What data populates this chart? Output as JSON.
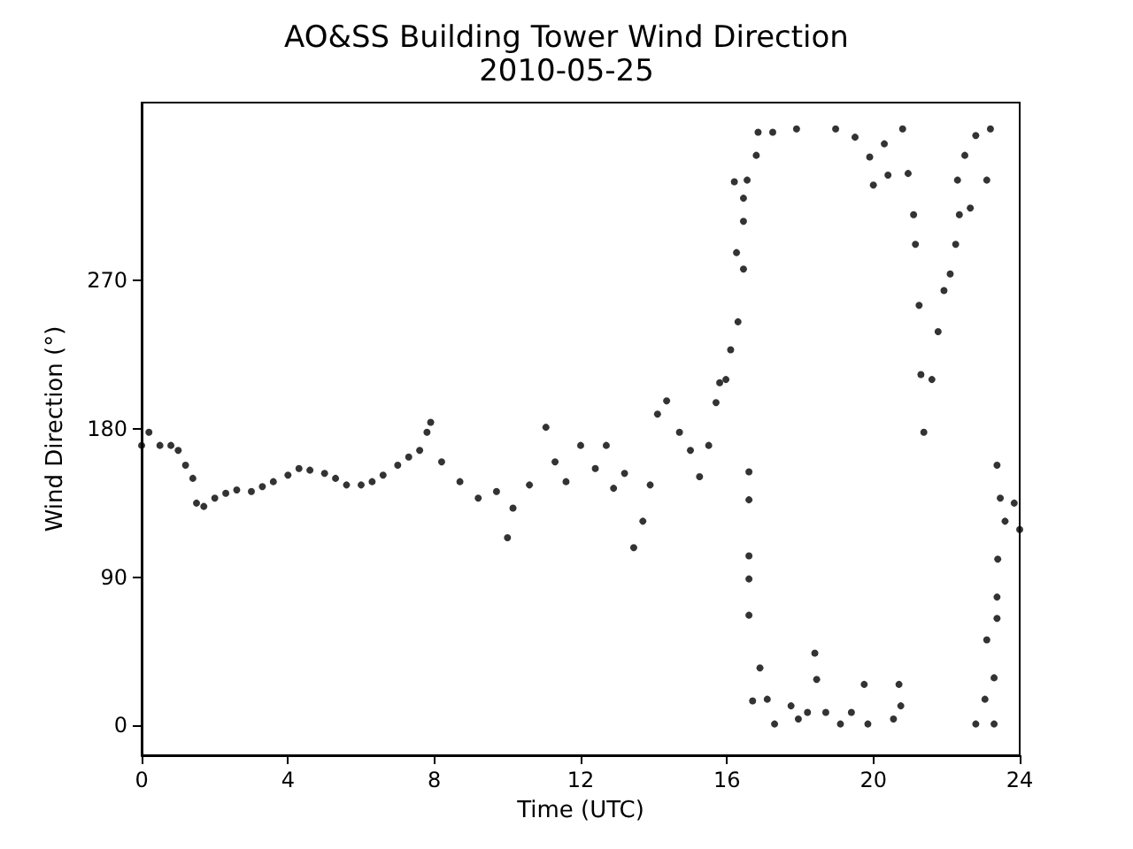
{
  "chart_data": {
    "type": "scatter",
    "title": "AO&SS Building Tower Wind Direction",
    "subtitle": "2010-05-25",
    "xlabel": "Time (UTC)",
    "ylabel": "Wind Direction (°)",
    "xlim": [
      0,
      24
    ],
    "xticks": [
      0,
      4,
      8,
      12,
      16,
      20,
      24
    ],
    "ylim": [
      -18,
      378
    ],
    "yticks": [
      0,
      90,
      180,
      270
    ],
    "marker": "circle",
    "series": [
      {
        "color": "#000000",
        "x": [
          0,
          0.2,
          0.5,
          0.8,
          1.0,
          1.2,
          1.4,
          1.5,
          1.7,
          2.0,
          2.3,
          2.6,
          3.0,
          3.3,
          3.6,
          4.0,
          4.3,
          4.6,
          5.0,
          5.3,
          5.6,
          6.0,
          6.3,
          6.6,
          7.0,
          7.3,
          7.6,
          7.8,
          7.9,
          8.2,
          8.7,
          9.2,
          9.7,
          10.0,
          10.15,
          10.6,
          11.05,
          11.3,
          11.6,
          12.0,
          12.4,
          12.7,
          12.9,
          13.2,
          13.45,
          13.7,
          13.9,
          14.1,
          14.35,
          14.7,
          15.0,
          15.25,
          15.5,
          15.7,
          15.8,
          15.97,
          16.1,
          16.2,
          16.26,
          16.3,
          16.45,
          16.45,
          16.45,
          16.55,
          16.8,
          16.85,
          17.25,
          17.9,
          18.97,
          19.5,
          19.9,
          20.0,
          20.3,
          20.4,
          20.8,
          20.95,
          21.1,
          21.15,
          21.25,
          21.3,
          21.38,
          21.6,
          21.77,
          21.93,
          22.1,
          22.25,
          22.3,
          22.35,
          22.5,
          22.65,
          22.8,
          23.1,
          23.2,
          16.6,
          16.6,
          16.6,
          16.6,
          16.6,
          16.7,
          16.9,
          17.1,
          17.3,
          17.75,
          17.95,
          18.2,
          18.4,
          18.45,
          18.7,
          19.1,
          19.4,
          19.75,
          19.85,
          20.55,
          20.7,
          20.75,
          22.8,
          23.05,
          23.1,
          23.3,
          23.3,
          23.38,
          23.38,
          23.4,
          23.38,
          23.47,
          23.6,
          23.85,
          24.0
        ],
        "values": [
          170,
          178,
          170,
          170,
          167,
          158,
          150,
          135,
          133,
          138,
          141,
          143,
          142,
          145,
          148,
          152,
          156,
          155,
          153,
          150,
          146,
          146,
          148,
          152,
          158,
          163,
          167,
          178,
          184,
          160,
          148,
          138,
          142,
          114,
          132,
          146,
          181,
          160,
          148,
          170,
          156,
          170,
          144,
          153,
          108,
          124,
          146,
          189,
          197,
          178,
          167,
          151,
          170,
          196,
          208,
          210,
          228,
          330,
          287,
          245,
          306,
          277,
          320,
          331,
          346,
          360,
          360,
          362,
          362,
          357,
          345,
          328,
          353,
          334,
          362,
          335,
          310,
          292,
          255,
          213,
          178,
          210,
          239,
          264,
          274,
          292,
          331,
          310,
          346,
          314,
          358,
          331,
          362,
          67,
          89,
          103,
          137,
          154,
          15,
          35,
          16,
          1,
          12,
          4,
          8,
          44,
          28,
          8,
          1,
          8,
          25,
          1,
          4,
          25,
          12,
          1,
          16,
          52,
          29,
          1,
          65,
          78,
          101,
          158,
          138,
          124,
          135,
          119
        ]
      }
    ]
  }
}
